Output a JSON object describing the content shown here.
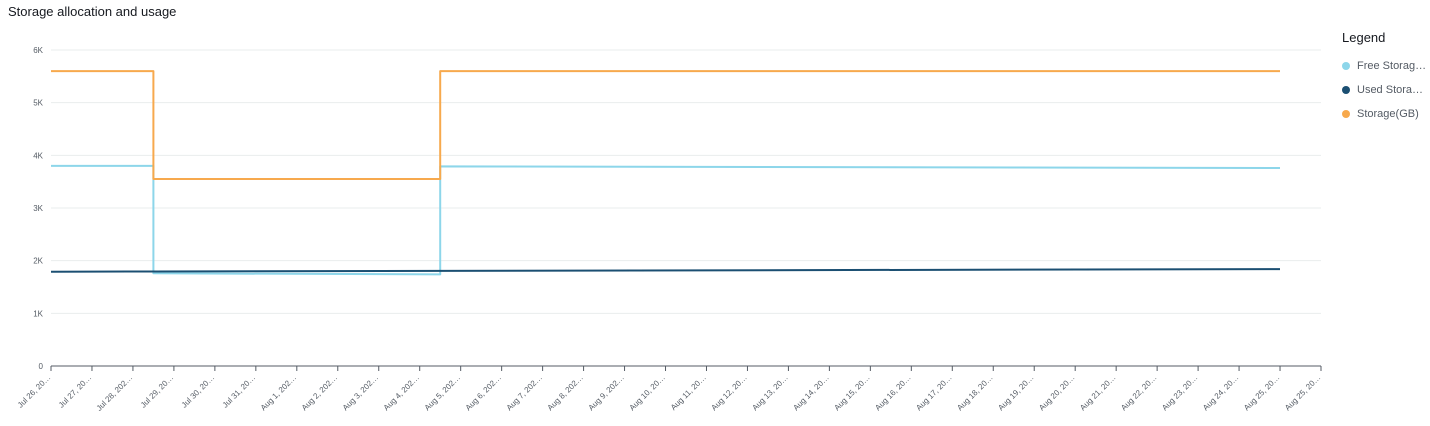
{
  "title": "Storage allocation and usage",
  "legend": {
    "title": "Legend",
    "items": [
      {
        "label": "Free Storag…",
        "color": "#8dd6ea"
      },
      {
        "label": "Used Stora…",
        "color": "#1b4f72"
      },
      {
        "label": "Storage(GB)",
        "color": "#f7a94d"
      }
    ]
  },
  "chart_data": {
    "type": "line",
    "title": "Storage allocation and usage",
    "xlabel": "",
    "ylabel": "",
    "ylim": [
      0,
      6000
    ],
    "y_ticks": [
      "0",
      "1K",
      "2K",
      "3K",
      "4K",
      "5K",
      "6K"
    ],
    "grid": true,
    "legend_position": "right",
    "x_tick_labels": [
      "Jul 26, 20…",
      "Jul 27, 20…",
      "Jul 28, 202…",
      "Jul 29, 20…",
      "Jul 30, 20…",
      "Jul 31, 20…",
      "Aug 1, 202…",
      "Aug 2, 202…",
      "Aug 3, 202…",
      "Aug 4, 202…",
      "Aug 5, 202…",
      "Aug 6, 202…",
      "Aug 7, 202…",
      "Aug 8, 202…",
      "Aug 9, 202…",
      "Aug 10, 20…",
      "Aug 11, 20…",
      "Aug 12, 20…",
      "Aug 13, 20…",
      "Aug 14, 20…",
      "Aug 15, 20…",
      "Aug 16, 20…",
      "Aug 17, 20…",
      "Aug 18, 20…",
      "Aug 19, 20…",
      "Aug 20, 20…",
      "Aug 21, 20…",
      "Aug 22, 20…",
      "Aug 23, 20…",
      "Aug 24, 20…",
      "Aug 25, 20…",
      "Aug 25, 20…"
    ],
    "series": [
      {
        "name": "Free Storag…",
        "color": "#8dd6ea",
        "points": [
          {
            "x": "Jul 26",
            "y": 3800
          },
          {
            "x": "Jul 28 12:00",
            "y": 3800
          },
          {
            "x": "Jul 28 12:00",
            "y": 1760
          },
          {
            "x": "Aug 4 12:00",
            "y": 1740
          },
          {
            "x": "Aug 4 12:00",
            "y": 3790
          },
          {
            "x": "Aug 25",
            "y": 3760
          }
        ]
      },
      {
        "name": "Used Stora…",
        "color": "#1b4f72",
        "points": [
          {
            "x": "Jul 26",
            "y": 1790
          },
          {
            "x": "Jul 28 12:00",
            "y": 1795
          },
          {
            "x": "Aug 4 12:00",
            "y": 1805
          },
          {
            "x": "Aug 25",
            "y": 1840
          }
        ]
      },
      {
        "name": "Storage(GB)",
        "color": "#f7a94d",
        "points": [
          {
            "x": "Jul 26",
            "y": 5600
          },
          {
            "x": "Jul 28 12:00",
            "y": 5600
          },
          {
            "x": "Jul 28 12:00",
            "y": 3550
          },
          {
            "x": "Aug 4 12:00",
            "y": 3550
          },
          {
            "x": "Aug 4 12:00",
            "y": 5600
          },
          {
            "x": "Aug 25",
            "y": 5600
          }
        ]
      }
    ]
  }
}
